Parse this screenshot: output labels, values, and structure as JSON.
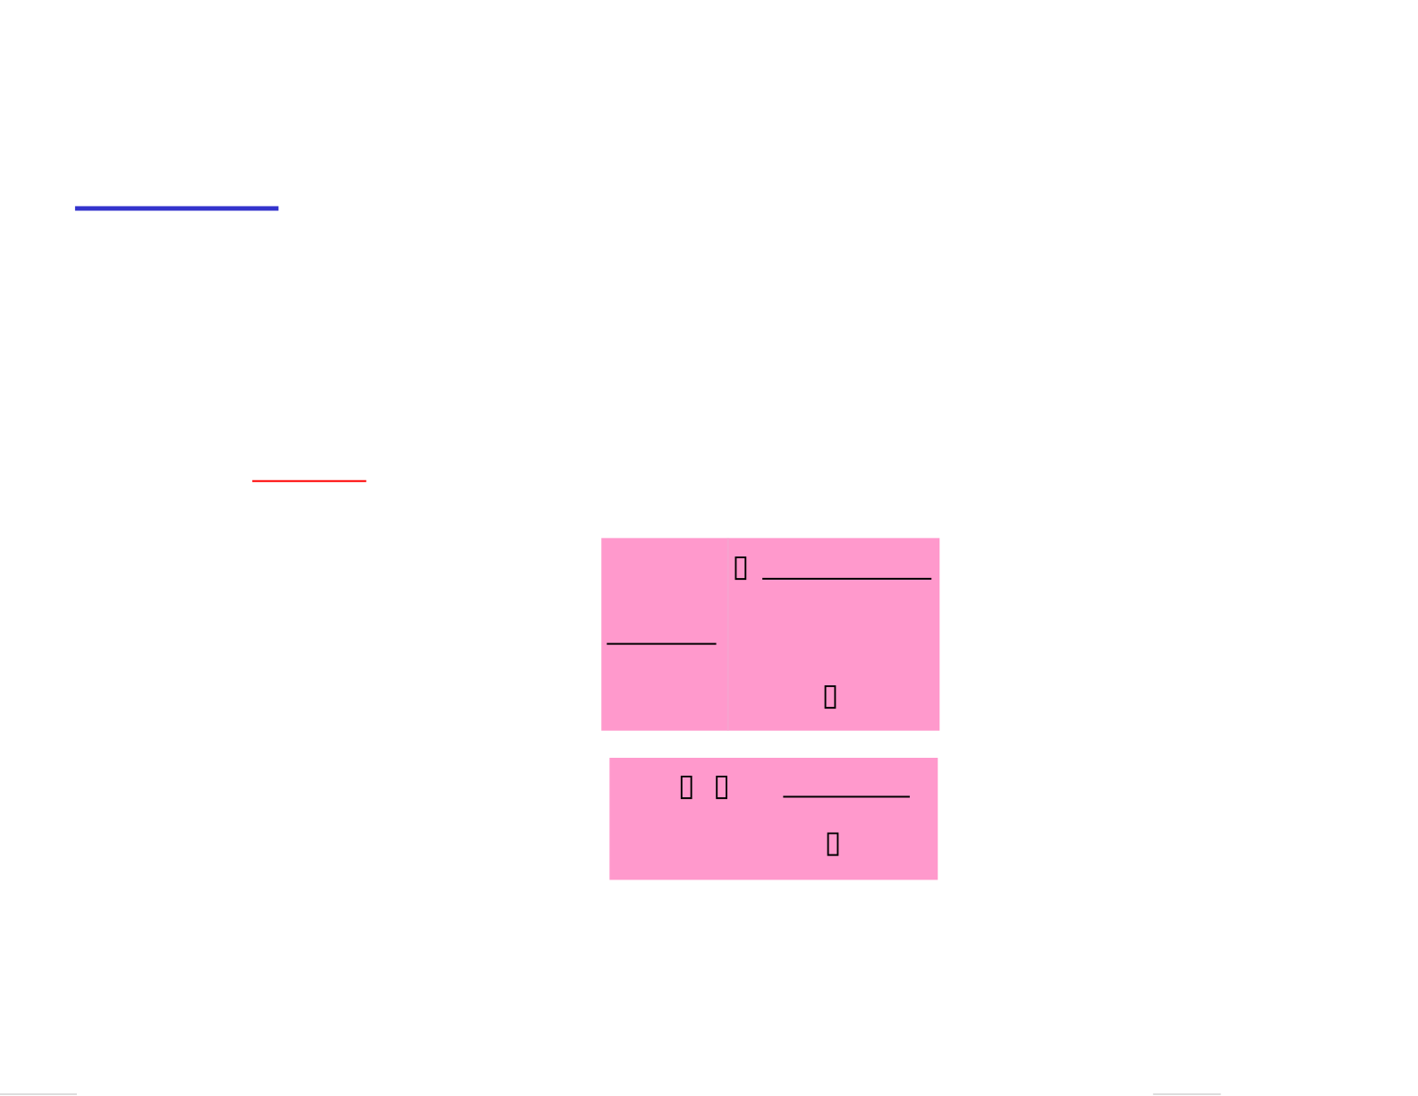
{
  "box1": {
    "glyphs": [
      "▯",
      "▯"
    ]
  },
  "box2": {
    "glyphs": [
      "▯",
      "▯",
      "▯"
    ]
  }
}
